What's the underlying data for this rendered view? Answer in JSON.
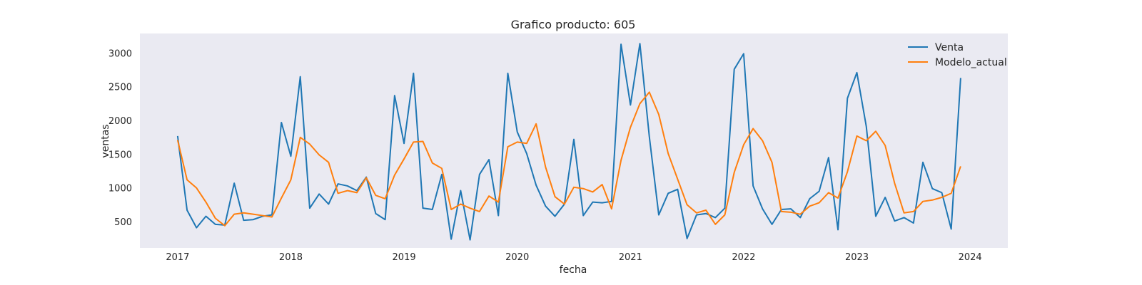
{
  "chart_data": {
    "type": "line",
    "title": "Grafico producto: 605",
    "xlabel": "fecha",
    "ylabel": "ventas",
    "x_ticks": [
      "2017",
      "2018",
      "2019",
      "2020",
      "2021",
      "2022",
      "2023",
      "2024"
    ],
    "y_ticks": [
      500,
      1000,
      1500,
      2000,
      2500,
      3000
    ],
    "xlim": [
      "2016-09",
      "2024-05"
    ],
    "ylim": [
      120,
      3300
    ],
    "grid": false,
    "legend": "top-right",
    "x": [
      "2017-01",
      "2017-02",
      "2017-03",
      "2017-04",
      "2017-05",
      "2017-06",
      "2017-07",
      "2017-08",
      "2017-09",
      "2017-10",
      "2017-11",
      "2017-12",
      "2018-01",
      "2018-02",
      "2018-03",
      "2018-04",
      "2018-05",
      "2018-06",
      "2018-07",
      "2018-08",
      "2018-09",
      "2018-10",
      "2018-11",
      "2018-12",
      "2019-01",
      "2019-02",
      "2019-03",
      "2019-04",
      "2019-05",
      "2019-06",
      "2019-07",
      "2019-08",
      "2019-09",
      "2019-10",
      "2019-11",
      "2019-12",
      "2020-01",
      "2020-02",
      "2020-03",
      "2020-04",
      "2020-05",
      "2020-06",
      "2020-07",
      "2020-08",
      "2020-09",
      "2020-10",
      "2020-11",
      "2020-12",
      "2021-01",
      "2021-02",
      "2021-03",
      "2021-04",
      "2021-05",
      "2021-06",
      "2021-07",
      "2021-08",
      "2021-09",
      "2021-10",
      "2021-11",
      "2021-12",
      "2022-01",
      "2022-02",
      "2022-03",
      "2022-04",
      "2022-05",
      "2022-06",
      "2022-07",
      "2022-08",
      "2022-09",
      "2022-10",
      "2022-11",
      "2022-12",
      "2023-01",
      "2023-02",
      "2023-03",
      "2023-04",
      "2023-05",
      "2023-06",
      "2023-07",
      "2023-08",
      "2023-09",
      "2023-10",
      "2023-11",
      "2023-12"
    ],
    "series": [
      {
        "name": "Venta",
        "color": "#1f77b4",
        "values": [
          1780,
          680,
          420,
          590,
          470,
          460,
          1080,
          530,
          540,
          590,
          610,
          1980,
          1480,
          2660,
          710,
          920,
          770,
          1070,
          1040,
          970,
          1170,
          630,
          540,
          2380,
          1670,
          2710,
          710,
          690,
          1210,
          250,
          970,
          240,
          1210,
          1430,
          600,
          2710,
          1840,
          1520,
          1050,
          740,
          590,
          770,
          1730,
          600,
          800,
          790,
          810,
          3140,
          2240,
          3150,
          1770,
          610,
          930,
          990,
          260,
          610,
          630,
          570,
          710,
          2770,
          3000,
          1040,
          700,
          470,
          690,
          700,
          570,
          850,
          960,
          1460,
          390,
          2340,
          2720,
          1920,
          590,
          870,
          520,
          570,
          490,
          1390,
          1000,
          940,
          400,
          2640
        ]
      },
      {
        "name": "Modelo_actual",
        "color": "#ff7f0e",
        "values": [
          1720,
          1130,
          1010,
          800,
          560,
          450,
          620,
          640,
          620,
          600,
          580,
          860,
          1130,
          1760,
          1660,
          1500,
          1390,
          930,
          970,
          940,
          1160,
          900,
          850,
          1200,
          1440,
          1690,
          1700,
          1380,
          1300,
          690,
          770,
          710,
          660,
          890,
          800,
          1620,
          1690,
          1670,
          1960,
          1320,
          880,
          770,
          1020,
          1000,
          950,
          1060,
          700,
          1420,
          1910,
          2260,
          2430,
          2100,
          1520,
          1140,
          760,
          640,
          680,
          470,
          610,
          1240,
          1650,
          1890,
          1710,
          1390,
          660,
          650,
          620,
          740,
          790,
          940,
          860,
          1250,
          1780,
          1710,
          1850,
          1640,
          1080,
          640,
          660,
          810,
          830,
          870,
          930,
          1330
        ]
      }
    ]
  }
}
